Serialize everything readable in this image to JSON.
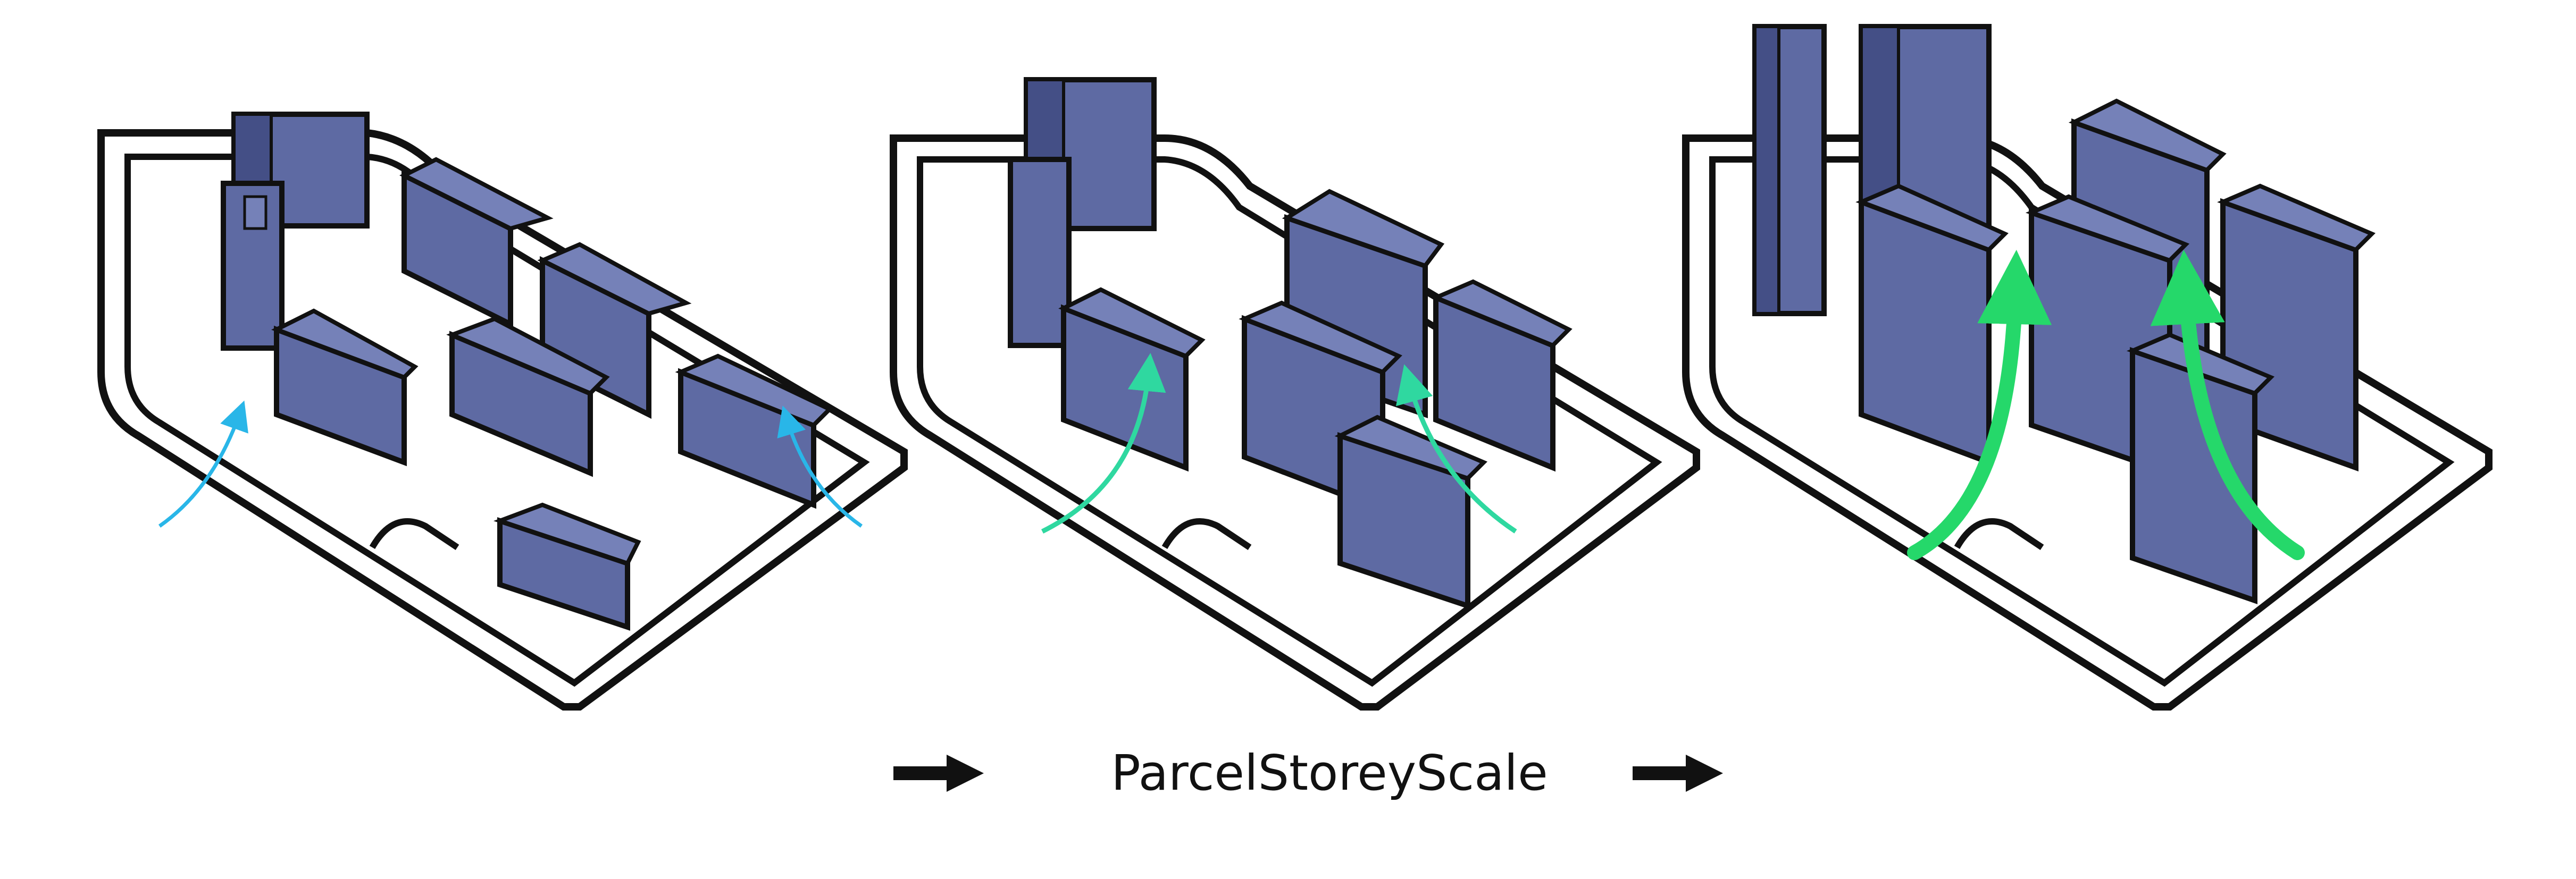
{
  "caption": {
    "text": "ParcelStoreyScale"
  },
  "colors": {
    "building_fill": "#5e6aa3",
    "building_dark": "#444f86",
    "building_light": "#7581b8",
    "outline": "#111111",
    "arrow_stage1": "#29b6e8",
    "arrow_stage2": "#2fd8a0",
    "arrow_stage3": "#25d86a",
    "background": "#ffffff"
  },
  "icons": {
    "flow_arrow": "right-arrow-icon"
  },
  "stages": [
    {
      "name": "stage-1",
      "arrow_color_key": "arrow_stage1"
    },
    {
      "name": "stage-2",
      "arrow_color_key": "arrow_stage2"
    },
    {
      "name": "stage-3",
      "arrow_color_key": "arrow_stage3"
    }
  ]
}
